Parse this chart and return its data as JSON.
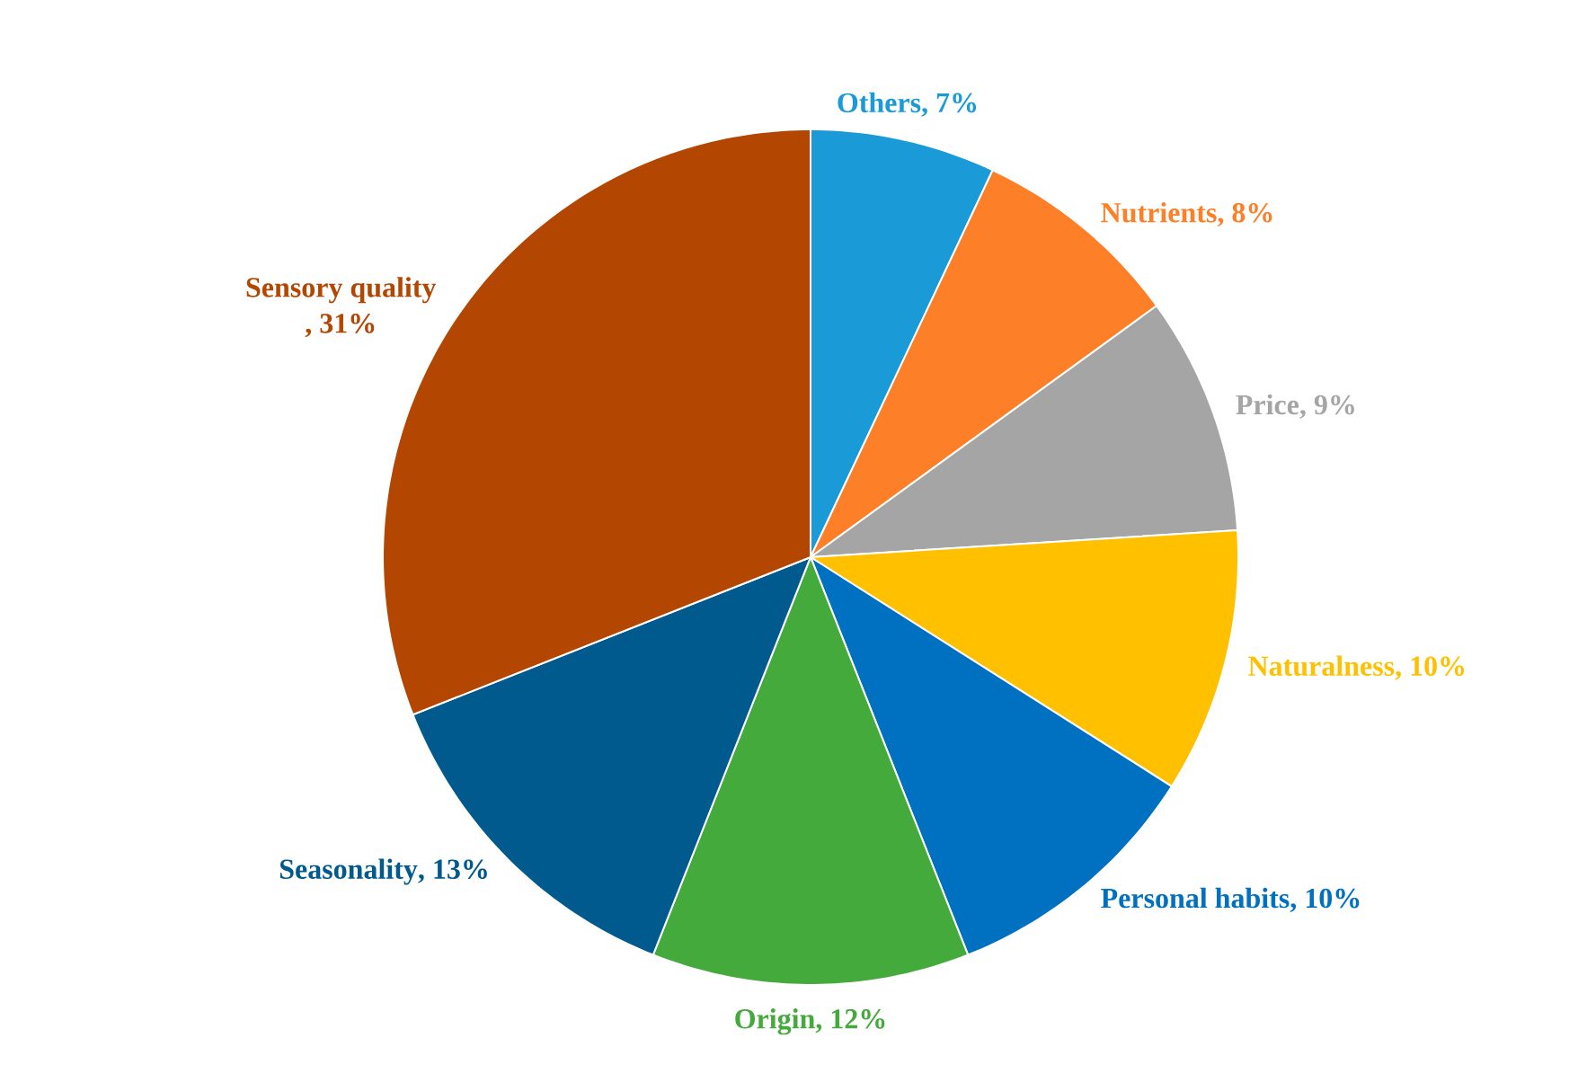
{
  "chart_data": {
    "type": "pie",
    "categories": [
      "Others",
      "Nutrients",
      "Price",
      "Naturalness",
      "Personal habits",
      "Origin",
      "Seasonality",
      "Sensory quality"
    ],
    "values": [
      7,
      8,
      9,
      10,
      10,
      12,
      13,
      31
    ],
    "value_labels": [
      ", 7%",
      ", 8%",
      ", 9%",
      ", 10%",
      ", 10%",
      ", 12%",
      ", 13%",
      ", 31%"
    ],
    "colors": [
      "#1a9ad6",
      "#fd7f28",
      "#a5a5a5",
      "#ffc000",
      "#0070c0",
      "#44aa3b",
      "#005a8e",
      "#b34600"
    ]
  }
}
